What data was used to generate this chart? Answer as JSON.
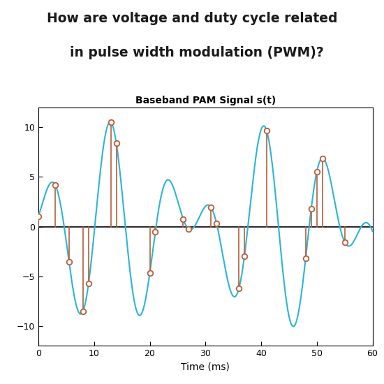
{
  "title_question_line1": "How are voltage and duty cycle related",
  "title_question_line2": "  in pulse width modulation (PWM)?",
  "chart_title": "Baseband PAM Signal s(t)",
  "xlabel": "Time (ms)",
  "xlim": [
    0,
    60
  ],
  "ylim": [
    -12,
    12
  ],
  "yticks": [
    -10,
    -5,
    0,
    5,
    10
  ],
  "xticks": [
    0,
    10,
    20,
    30,
    40,
    50,
    60
  ],
  "signal_color": "#29B6D4",
  "stem_color": "#B85C38",
  "bg_color": "#FFFFFF",
  "question_color": "#1A1A1A",
  "f_carrier": 0.09,
  "f_mod": 0.017,
  "amplitude": 10.5,
  "phi_carrier": 0.18,
  "phi_mod": -0.55,
  "sample_times": [
    0,
    3,
    5.5,
    8,
    9,
    13,
    14,
    20,
    21,
    26,
    27,
    31,
    32,
    36,
    37,
    41,
    48,
    49,
    50,
    51,
    55
  ],
  "figsize": [
    5.5,
    5.5
  ],
  "dpi": 100
}
